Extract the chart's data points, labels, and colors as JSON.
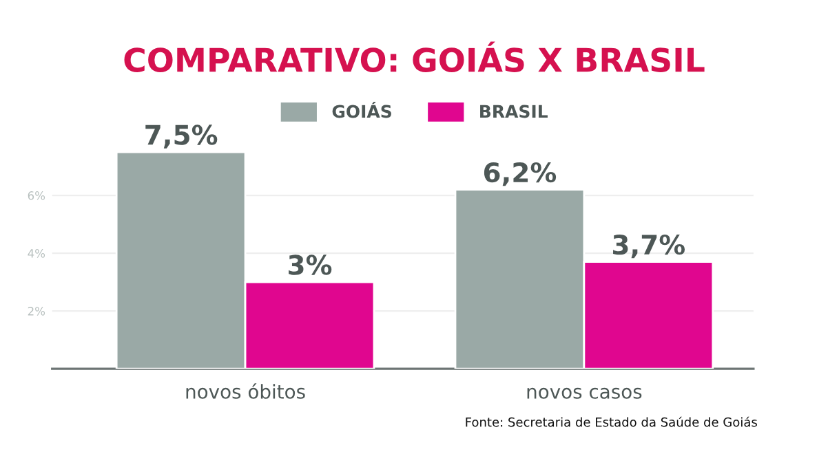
{
  "chart_data": {
    "type": "bar",
    "title": "COMPARATIVO: GOIÁS X BRASIL",
    "categories": [
      "novos óbitos",
      "novos casos"
    ],
    "series": [
      {
        "name": "GOIÁS",
        "color": "#9aa9a6",
        "values": [
          7.5,
          6.2
        ],
        "value_labels": [
          "7,5%",
          "6,2%"
        ]
      },
      {
        "name": "BRASIL",
        "color": "#e0068f",
        "values": [
          3,
          3.7
        ],
        "value_labels": [
          "3%",
          "3,7%"
        ]
      }
    ],
    "ylim": [
      0,
      7.5
    ],
    "yticks": [
      {
        "value": 2,
        "label": "2%"
      },
      {
        "value": 4,
        "label": "4%"
      },
      {
        "value": 6,
        "label": "6%"
      }
    ],
    "grid": "y",
    "legend": "top",
    "annotations": [
      "Fonte: Secretaria de Estado da Saúde de Goiás"
    ]
  }
}
